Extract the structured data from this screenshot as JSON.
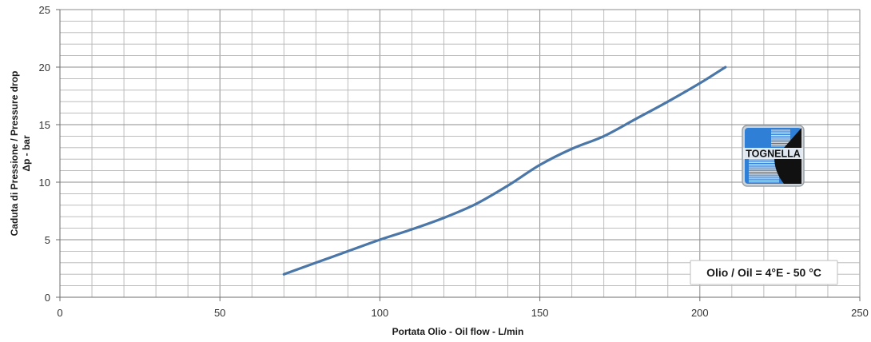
{
  "chart_data": {
    "type": "line",
    "xlabel": "Portata Olio - Oil flow -  L/min",
    "ylabel_line1": "Caduta di Pressione / Pressure drop",
    "ylabel_line2": "Δp - bar",
    "xlim": [
      0,
      250
    ],
    "ylim": [
      0,
      25
    ],
    "x_ticks": [
      0,
      50,
      100,
      150,
      200,
      250
    ],
    "y_ticks": [
      0,
      5,
      10,
      15,
      20,
      25
    ],
    "x_minor_step": 10,
    "y_minor_step": 1,
    "grid": true,
    "series": [
      {
        "color": "#4a76a8",
        "points": [
          [
            70,
            2.0
          ],
          [
            80,
            3.0
          ],
          [
            90,
            4.0
          ],
          [
            100,
            5.0
          ],
          [
            110,
            5.9
          ],
          [
            120,
            6.9
          ],
          [
            130,
            8.1
          ],
          [
            140,
            9.7
          ],
          [
            150,
            11.5
          ],
          [
            160,
            12.9
          ],
          [
            170,
            14.0
          ],
          [
            180,
            15.5
          ],
          [
            190,
            17.0
          ],
          [
            200,
            18.6
          ],
          [
            208,
            20.0
          ]
        ]
      }
    ],
    "annotation": "Olio / Oil = 4°E - 50 °C"
  },
  "logo": {
    "text": "TOGNELLA",
    "colors": {
      "blue": "#2f7fd6",
      "dark": "#111111",
      "grey": "#9aa3ab"
    }
  }
}
